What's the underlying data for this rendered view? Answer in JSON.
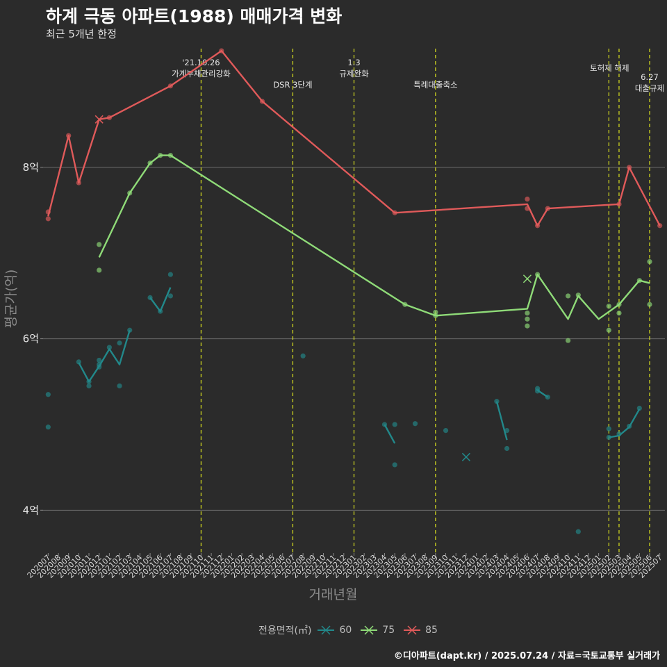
{
  "header": {
    "title": "하계 극동 아파트(1988) 매매가격 변화",
    "subtitle": "최근 5개년 한정",
    "caption": "©디아파트(dapt.kr) / 2025.07.24 / 자료=국토교통부 실거래가"
  },
  "legend": {
    "title": "전용면적(㎡)",
    "items": [
      {
        "label": "60",
        "color": "#22888a"
      },
      {
        "label": "75",
        "color": "#8fdb78"
      },
      {
        "label": "85",
        "color": "#e05a5a"
      }
    ]
  },
  "chart_data": {
    "type": "line",
    "xlabel": "거래년월",
    "ylabel": "평균가(억)",
    "categories": [
      "202007",
      "202008",
      "202009",
      "202010",
      "202011",
      "202012",
      "202101",
      "202102",
      "202103",
      "202104",
      "202105",
      "202106",
      "202107",
      "202108",
      "202109",
      "202110",
      "202111",
      "202112",
      "202201",
      "202202",
      "202203",
      "202204",
      "202205",
      "202206",
      "202207",
      "202208",
      "202209",
      "202210",
      "202211",
      "202212",
      "202301",
      "202302",
      "202303",
      "202304",
      "202305",
      "202306",
      "202307",
      "202308",
      "202309",
      "202310",
      "202311",
      "202312",
      "202401",
      "202402",
      "202403",
      "202404",
      "202405",
      "202406",
      "202407",
      "202408",
      "202409",
      "202410",
      "202411",
      "202412",
      "202501",
      "202502",
      "202503",
      "202504",
      "202505",
      "202506",
      "202507"
    ],
    "yticks": [
      {
        "value": 4,
        "label": "4억"
      },
      {
        "value": 6,
        "label": "6억"
      },
      {
        "value": 8,
        "label": "8억"
      }
    ],
    "ylim": [
      3.5,
      9.45
    ],
    "grid": "horizontal",
    "legend_position": "bottom",
    "series": [
      {
        "name": "60",
        "color": "#22888a",
        "line_segments": [
          [
            [
              "202010",
              5.72
            ],
            [
              "202011",
              5.5
            ],
            [
              "202012",
              5.68
            ],
            [
              "202101",
              5.88
            ],
            [
              "202102",
              5.7
            ],
            [
              "202103",
              6.1
            ]
          ],
          [
            [
              "202105",
              6.48
            ],
            [
              "202106",
              6.32
            ],
            [
              "202107",
              6.6
            ]
          ],
          [
            [
              "202304",
              5.0
            ],
            [
              "202305",
              4.78
            ]
          ],
          [
            [
              "202403",
              5.27
            ],
            [
              "202404",
              4.82
            ]
          ],
          [
            [
              "202407",
              5.4
            ],
            [
              "202408",
              5.32
            ]
          ],
          [
            [
              "202502",
              4.85
            ],
            [
              "202503",
              4.87
            ],
            [
              "202504",
              4.97
            ],
            [
              "202505",
              5.18
            ]
          ]
        ],
        "points": [
          [
            "202007",
            5.35
          ],
          [
            "202007",
            4.97
          ],
          [
            "202010",
            5.73
          ],
          [
            "202011",
            5.45
          ],
          [
            "202011",
            5.5
          ],
          [
            "202012",
            5.7
          ],
          [
            "202012",
            5.67
          ],
          [
            "202012",
            5.75
          ],
          [
            "202101",
            5.9
          ],
          [
            "202102",
            5.95
          ],
          [
            "202102",
            5.45
          ],
          [
            "202103",
            6.1
          ],
          [
            "202105",
            6.48
          ],
          [
            "202106",
            6.32
          ],
          [
            "202107",
            6.5
          ],
          [
            "202107",
            6.75
          ],
          [
            "202208",
            5.8
          ],
          [
            "202304",
            5.0
          ],
          [
            "202305",
            5.0
          ],
          [
            "202305",
            4.53
          ],
          [
            "202307",
            5.01
          ],
          [
            "202310",
            4.93
          ],
          [
            "202403",
            5.27
          ],
          [
            "202404",
            4.93
          ],
          [
            "202404",
            4.72
          ],
          [
            "202407",
            5.42
          ],
          [
            "202407",
            5.39
          ],
          [
            "202408",
            5.32
          ],
          [
            "202411",
            3.75
          ],
          [
            "202502",
            4.95
          ],
          [
            "202502",
            4.85
          ],
          [
            "202503",
            4.89
          ],
          [
            "202504",
            4.98
          ],
          [
            "202505",
            5.19
          ]
        ],
        "cancelled": [
          [
            "202312",
            4.62
          ]
        ]
      },
      {
        "name": "75",
        "color": "#8fdb78",
        "line_segments": [
          [
            [
              "202012",
              6.95
            ],
            [
              "202103",
              7.7
            ],
            [
              "202105",
              8.05
            ],
            [
              "202106",
              8.14
            ],
            [
              "202107",
              8.14
            ],
            [
              "202306",
              6.4
            ],
            [
              "202309",
              6.27
            ],
            [
              "202406",
              6.35
            ],
            [
              "202407",
              6.75
            ],
            [
              "202410",
              6.23
            ],
            [
              "202411",
              6.5
            ],
            [
              "202501",
              6.23
            ],
            [
              "202503",
              6.4
            ],
            [
              "202505",
              6.68
            ],
            [
              "202506",
              6.65
            ]
          ]
        ],
        "points": [
          [
            "202012",
            7.1
          ],
          [
            "202012",
            6.8
          ],
          [
            "202103",
            7.7
          ],
          [
            "202105",
            8.05
          ],
          [
            "202106",
            8.14
          ],
          [
            "202107",
            8.14
          ],
          [
            "202306",
            6.4
          ],
          [
            "202309",
            6.31
          ],
          [
            "202309",
            6.27
          ],
          [
            "202406",
            6.3
          ],
          [
            "202406",
            6.23
          ],
          [
            "202406",
            6.15
          ],
          [
            "202407",
            6.75
          ],
          [
            "202410",
            6.5
          ],
          [
            "202410",
            5.98
          ],
          [
            "202411",
            6.51
          ],
          [
            "202502",
            6.38
          ],
          [
            "202502",
            6.1
          ],
          [
            "202503",
            6.4
          ],
          [
            "202503",
            6.3
          ],
          [
            "202505",
            6.68
          ],
          [
            "202506",
            6.9
          ],
          [
            "202506",
            6.4
          ]
        ],
        "cancelled": [
          [
            "202406",
            6.7
          ]
        ]
      },
      {
        "name": "85",
        "color": "#e05a5a",
        "line_segments": [
          [
            [
              "202007",
              7.43
            ],
            [
              "202009",
              8.37
            ],
            [
              "202010",
              7.82
            ],
            [
              "202012",
              8.56
            ],
            [
              "202101",
              8.58
            ],
            [
              "202107",
              8.95
            ],
            [
              "202112",
              9.36
            ],
            [
              "202204",
              8.77
            ],
            [
              "202305",
              7.47
            ],
            [
              "202406",
              7.57
            ],
            [
              "202407",
              7.32
            ],
            [
              "202408",
              7.52
            ],
            [
              "202503",
              7.57
            ],
            [
              "202504",
              8.0
            ],
            [
              "202507",
              7.32
            ]
          ]
        ],
        "points": [
          [
            "202007",
            7.48
          ],
          [
            "202007",
            7.4
          ],
          [
            "202009",
            8.37
          ],
          [
            "202010",
            7.82
          ],
          [
            "202101",
            8.58
          ],
          [
            "202107",
            8.95
          ],
          [
            "202112",
            9.36
          ],
          [
            "202204",
            8.77
          ],
          [
            "202305",
            7.47
          ],
          [
            "202406",
            7.63
          ],
          [
            "202406",
            7.52
          ],
          [
            "202407",
            7.32
          ],
          [
            "202408",
            7.52
          ],
          [
            "202503",
            7.57
          ],
          [
            "202504",
            8.0
          ],
          [
            "202507",
            7.32
          ]
        ],
        "cancelled": [
          [
            "202012",
            8.56
          ]
        ]
      }
    ],
    "annotations": [
      {
        "x": "202110",
        "lines": [
          "'21.10.26",
          "가계부채관리강화"
        ],
        "row": 0
      },
      {
        "x": "202207",
        "lines": [
          "DSR 3단계"
        ],
        "row": 1
      },
      {
        "x": "202301",
        "lines": [
          "1.3",
          "규제완화"
        ],
        "row": 0
      },
      {
        "x": "202309",
        "lines": [
          "특례대출축소"
        ],
        "row": 1
      },
      {
        "x": "202502",
        "lines": [
          "토허제 해제"
        ],
        "row": 0,
        "anchor": "start-shift"
      },
      {
        "x": "202503",
        "lines": [],
        "row": 0
      },
      {
        "x": "202506",
        "lines": [
          "6.27",
          "대출규제"
        ],
        "row": 2
      }
    ]
  }
}
